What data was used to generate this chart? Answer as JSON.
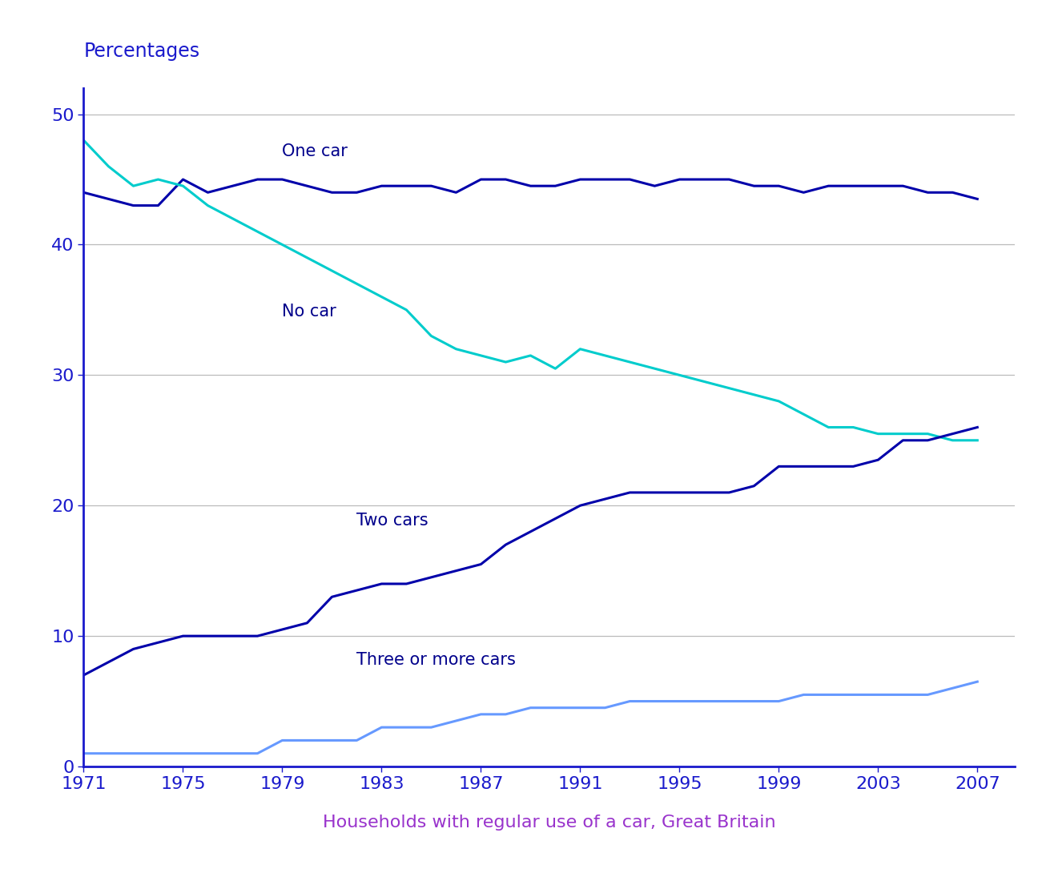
{
  "top_label": "Percentages",
  "top_label_color": "#1a1acc",
  "xlabel": "Households with regular use of a car, Great Britain",
  "xlabel_color": "#9933cc",
  "background_color": "#ffffff",
  "ylim": [
    0,
    52
  ],
  "yticks": [
    0,
    10,
    20,
    30,
    40,
    50
  ],
  "xtick_years": [
    1971,
    1975,
    1979,
    1983,
    1987,
    1991,
    1995,
    1999,
    2003,
    2007
  ],
  "tick_color": "#1a1acc",
  "grid_color": "#bbbbbb",
  "spine_color": "#1a1acc",
  "series": [
    {
      "label": "One car",
      "color": "#0000aa",
      "linewidth": 2.2,
      "annotation": "One car",
      "ann_x": 1979,
      "ann_y": 46.8,
      "years": [
        1971,
        1972,
        1973,
        1974,
        1975,
        1976,
        1977,
        1978,
        1979,
        1980,
        1981,
        1982,
        1983,
        1984,
        1985,
        1986,
        1987,
        1988,
        1989,
        1990,
        1991,
        1992,
        1993,
        1994,
        1995,
        1996,
        1997,
        1998,
        1999,
        2000,
        2001,
        2002,
        2003,
        2004,
        2005,
        2006,
        2007
      ],
      "values": [
        44,
        43.5,
        43,
        43,
        45,
        44,
        44.5,
        45,
        45,
        44.5,
        44,
        44,
        44.5,
        44.5,
        44.5,
        44,
        45,
        45,
        44.5,
        44.5,
        45,
        45,
        45,
        44.5,
        45,
        45,
        45,
        44.5,
        44.5,
        44,
        44.5,
        44.5,
        44.5,
        44.5,
        44,
        44,
        43.5
      ]
    },
    {
      "label": "No car",
      "color": "#00cccc",
      "linewidth": 2.2,
      "annotation": "No car",
      "ann_x": 1979,
      "ann_y": 34.5,
      "years": [
        1971,
        1972,
        1973,
        1974,
        1975,
        1976,
        1977,
        1978,
        1979,
        1980,
        1981,
        1982,
        1983,
        1984,
        1985,
        1986,
        1987,
        1988,
        1989,
        1990,
        1991,
        1992,
        1993,
        1994,
        1995,
        1996,
        1997,
        1998,
        1999,
        2000,
        2001,
        2002,
        2003,
        2004,
        2005,
        2006,
        2007
      ],
      "values": [
        48,
        46,
        44.5,
        45,
        44.5,
        43,
        42,
        41,
        40,
        39,
        38,
        37,
        36,
        35,
        33,
        32,
        31.5,
        31,
        31.5,
        30.5,
        32,
        31.5,
        31,
        30.5,
        30,
        29.5,
        29,
        28.5,
        28,
        27,
        26,
        26,
        25.5,
        25.5,
        25.5,
        25,
        25
      ]
    },
    {
      "label": "Two cars",
      "color": "#0000aa",
      "linewidth": 2.2,
      "annotation": "Two cars",
      "ann_x": 1982,
      "ann_y": 18.5,
      "years": [
        1971,
        1972,
        1973,
        1974,
        1975,
        1976,
        1977,
        1978,
        1979,
        1980,
        1981,
        1982,
        1983,
        1984,
        1985,
        1986,
        1987,
        1988,
        1989,
        1990,
        1991,
        1992,
        1993,
        1994,
        1995,
        1996,
        1997,
        1998,
        1999,
        2000,
        2001,
        2002,
        2003,
        2004,
        2005,
        2006,
        2007
      ],
      "values": [
        7,
        8,
        9,
        9.5,
        10,
        10,
        10,
        10,
        10.5,
        11,
        13,
        13.5,
        14,
        14,
        14.5,
        15,
        15.5,
        17,
        18,
        19,
        20,
        20.5,
        21,
        21,
        21,
        21,
        21,
        21.5,
        23,
        23,
        23,
        23,
        23.5,
        25,
        25,
        25.5,
        26
      ]
    },
    {
      "label": "Three or more cars",
      "color": "#6699ff",
      "linewidth": 2.2,
      "annotation": "Three or more cars",
      "ann_x": 1982,
      "ann_y": 7.8,
      "years": [
        1971,
        1972,
        1973,
        1974,
        1975,
        1976,
        1977,
        1978,
        1979,
        1980,
        1981,
        1982,
        1983,
        1984,
        1985,
        1986,
        1987,
        1988,
        1989,
        1990,
        1991,
        1992,
        1993,
        1994,
        1995,
        1996,
        1997,
        1998,
        1999,
        2000,
        2001,
        2002,
        2003,
        2004,
        2005,
        2006,
        2007
      ],
      "values": [
        1,
        1,
        1,
        1,
        1,
        1,
        1,
        1,
        2,
        2,
        2,
        2,
        3,
        3,
        3,
        3.5,
        4,
        4,
        4.5,
        4.5,
        4.5,
        4.5,
        5,
        5,
        5,
        5,
        5,
        5,
        5,
        5.5,
        5.5,
        5.5,
        5.5,
        5.5,
        5.5,
        6,
        6.5
      ]
    }
  ],
  "annotation_fontsize": 15,
  "annotation_color": "#00008B"
}
